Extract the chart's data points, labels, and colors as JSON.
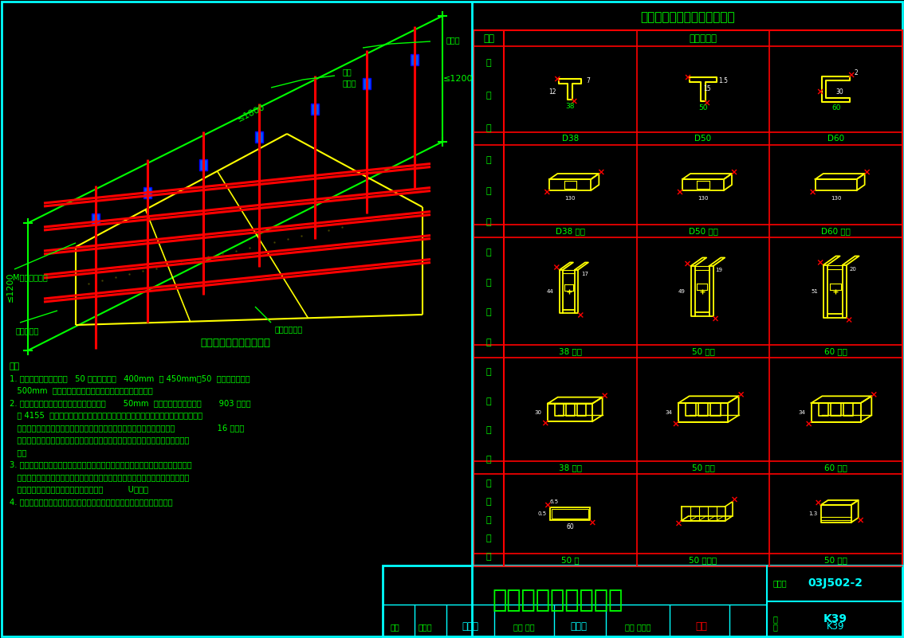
{
  "bg_color": "#000000",
  "cyan_color": "#00FFFF",
  "red_color": "#FF0000",
  "green_color": "#00FF00",
  "yellow_color": "#FFFF00",
  "white_color": "#FFFFFF",
  "blue_color": "#0000FF",
  "blue_fill": "#0055FF",
  "title_right": "复合粘贴矿棉板吸顶主要配件",
  "title_perspective": "复合粘贴矿棉板吸顶透视",
  "main_title": "复合粘贴矿棉板吸顶",
  "atlas_label": "图集号",
  "atlas_no": "03J502-2",
  "page_label": "页",
  "page_no": "K39",
  "col1_header": "产品",
  "col2_header": "图形及尺寸",
  "row1_label": "大龙骨",
  "row1_subs": [
    "D38",
    "D50",
    "D60"
  ],
  "row2_label": "接长件",
  "row2_subs": [
    "D38 接长",
    "D50 接长",
    "D60 接长"
  ],
  "row3_label": "垂直挂件",
  "row3_subs": [
    "38 吸件",
    "50 吸件",
    "60 吸件"
  ],
  "row4_label": "垂直挂件",
  "row4_subs": [
    "38 挂件",
    "50 挂件",
    "60 挂件"
  ],
  "row5_label": "龙骨及配件",
  "row5_subs": [
    "50 扜",
    "50 副挂件",
    "50 支托"
  ],
  "note_title": "注：",
  "notes": [
    "1. 为使挂板规整性稳定，   50 次龙骨间距以   400mm  或 450mm，50  次龙骨横向距以",
    "   500mm  为宜。纸面石膏板与轻钙龙骨用自攻螺丝固定。",
    "2. 纸面石膏板的搭缝和矿棉板的搭缝要错开       50mm  以上，采用专用粘结剂       903 建筑胶",
    "   或 4155  建筑胶和专用直钉或门形钉，将矿棉板直接粘贴在已固定在龙骨架上的纸",
    "   面石膏板上，包括复合平贴和复合插贴。粘结剂的涂擦采用点涂，每根板共                 16 个点。",
    "   直钉或门形钉打入后，一定要确认，不要松动，用气动触发电锤枪打入直钉或门形",
    "   钉。",
    "3. 复合平贴时，按照划好的安装线，从一端或从中心线向两侧展开安装，同时用专用",
    "   直钉在板面固定。复合插贴时，按照划好的安装线，从邻近一侧（角）开始安装，",
    "   同时用专门门形钉在板面固定，严禁使用          U形钉。",
    "4. 矿棉板可采取方板、长方板、链缝等方式排列，按钕形式由设计人员定。"
  ],
  "label_M": "M型龙骨（宽）",
  "label_gypsum": "纸面石膏板",
  "label_mineral": "矿棉板吸声板",
  "label_hanger": "吸杆",
  "label_hanger2": "吸挂件",
  "label_main_runner": "主龙骨",
  "label_le1800": "≤1800",
  "label_le1200a": "≤1200",
  "label_le1200b": "≤1200",
  "bottom_staff": [
    "审核",
    "监视修",
    "浣依字",
    "核对 黄龄",
    "冒讯以",
    "设计 史岱芳",
    "红彩",
    "页",
    "K39"
  ]
}
